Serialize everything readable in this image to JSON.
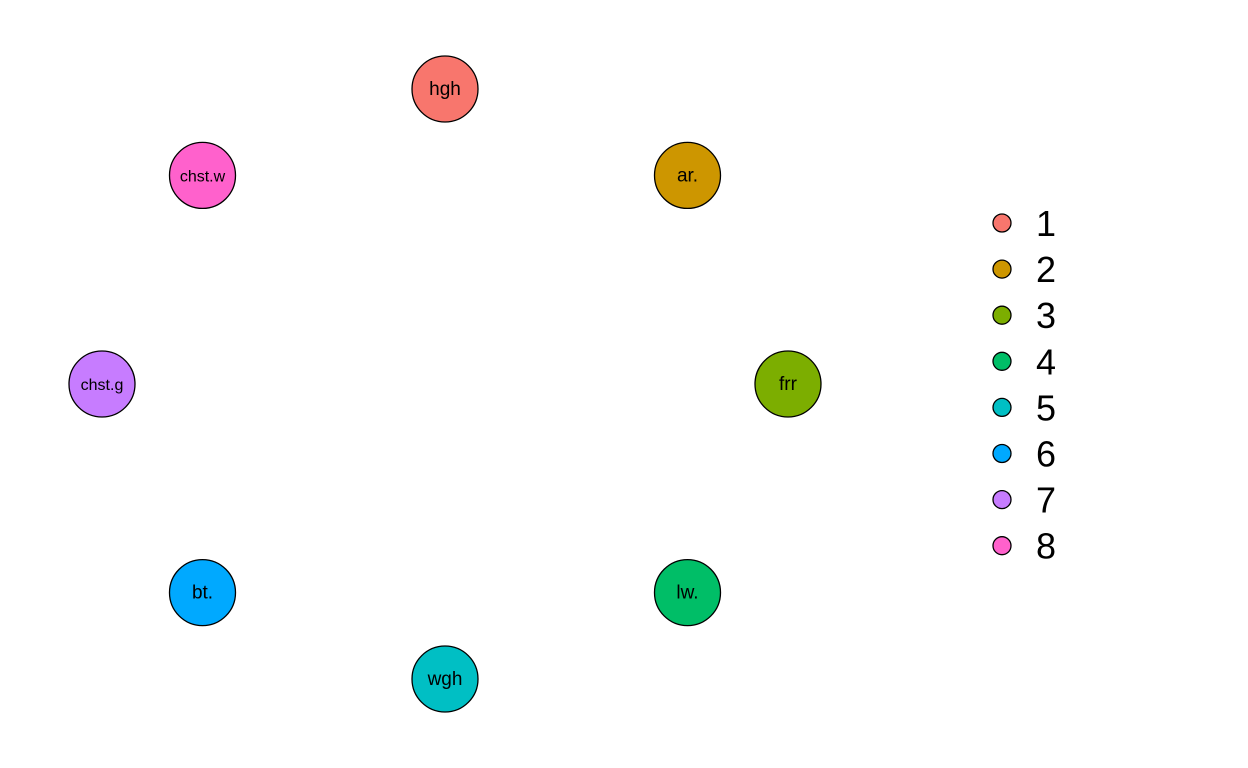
{
  "nodes": [
    {
      "id": "hgh",
      "label": "hgh",
      "group": "1",
      "color": "#F8766D"
    },
    {
      "id": "ar.",
      "label": "ar.",
      "group": "2",
      "color": "#CD9600"
    },
    {
      "id": "frr",
      "label": "frr",
      "group": "3",
      "color": "#7CAE00"
    },
    {
      "id": "lw.",
      "label": "lw.",
      "group": "4",
      "color": "#00BE67"
    },
    {
      "id": "wgh",
      "label": "wgh",
      "group": "5",
      "color": "#00BFC4"
    },
    {
      "id": "bt.",
      "label": "bt.",
      "group": "6",
      "color": "#00A9FF"
    },
    {
      "id": "chst.g",
      "label": "chst.g",
      "group": "7",
      "color": "#C77CFF"
    },
    {
      "id": "chst.w",
      "label": "chst.w",
      "group": "8",
      "color": "#FF61CC"
    }
  ],
  "edges": [],
  "legend": {
    "items": [
      {
        "label": "1",
        "color": "#F8766D"
      },
      {
        "label": "2",
        "color": "#CD9600"
      },
      {
        "label": "3",
        "color": "#7CAE00"
      },
      {
        "label": "4",
        "color": "#00BE67"
      },
      {
        "label": "5",
        "color": "#00BFC4"
      },
      {
        "label": "6",
        "color": "#00A9FF"
      },
      {
        "label": "7",
        "color": "#C77CFF"
      },
      {
        "label": "8",
        "color": "#FF61CC"
      }
    ]
  },
  "stroke_color": "#000000",
  "background": "#FFFFFF"
}
